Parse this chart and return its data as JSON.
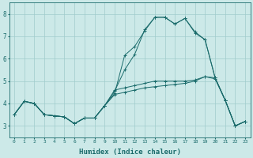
{
  "xlabel": "Humidex (Indice chaleur)",
  "bg_color": "#cce9e8",
  "grid_color": "#a0cccc",
  "line_color": "#1a6b6b",
  "xlim": [
    -0.5,
    23.5
  ],
  "ylim": [
    2.5,
    8.5
  ],
  "xticks": [
    0,
    1,
    2,
    3,
    4,
    5,
    6,
    7,
    8,
    9,
    10,
    11,
    12,
    13,
    14,
    15,
    16,
    17,
    18,
    19,
    20,
    21,
    22,
    23
  ],
  "yticks": [
    3,
    4,
    5,
    6,
    7,
    8
  ],
  "line1_x": [
    0,
    1,
    2,
    3,
    4,
    5,
    6,
    7,
    8,
    9,
    10,
    11,
    12,
    13,
    14,
    15,
    16,
    17,
    18,
    19,
    20,
    21,
    22,
    23
  ],
  "line1_y": [
    3.5,
    4.1,
    4.0,
    3.5,
    3.45,
    3.4,
    3.1,
    3.35,
    3.35,
    3.9,
    4.6,
    4.7,
    4.8,
    4.9,
    5.0,
    5.0,
    5.0,
    5.0,
    5.05,
    5.2,
    5.1,
    4.15,
    3.0,
    3.2
  ],
  "line2_x": [
    0,
    1,
    2,
    3,
    4,
    5,
    6,
    7,
    8,
    9,
    10,
    11,
    12,
    13,
    14,
    15,
    16,
    17,
    18,
    19,
    20,
    21,
    22,
    23
  ],
  "line2_y": [
    3.5,
    4.1,
    4.0,
    3.5,
    3.45,
    3.4,
    3.1,
    3.35,
    3.35,
    3.9,
    4.55,
    5.5,
    6.2,
    7.3,
    7.85,
    7.85,
    7.55,
    7.8,
    7.2,
    6.85,
    5.15,
    4.15,
    3.0,
    3.2
  ],
  "line3_x": [
    0,
    1,
    2,
    3,
    4,
    5,
    6,
    7,
    8,
    9,
    10,
    11,
    12,
    13,
    14,
    15,
    16,
    17,
    18,
    19,
    20,
    21,
    22,
    23
  ],
  "line3_y": [
    3.5,
    4.1,
    4.0,
    3.5,
    3.45,
    3.4,
    3.1,
    3.35,
    3.35,
    3.9,
    4.45,
    6.15,
    6.55,
    7.25,
    7.85,
    7.85,
    7.55,
    7.8,
    7.15,
    6.85,
    5.15,
    4.15,
    3.0,
    3.2
  ],
  "line4_x": [
    0,
    1,
    2,
    3,
    4,
    5,
    6,
    7,
    8,
    9,
    10,
    11,
    12,
    13,
    14,
    15,
    16,
    17,
    18,
    19,
    20,
    21,
    22,
    23
  ],
  "line4_y": [
    3.5,
    4.1,
    4.0,
    3.5,
    3.45,
    3.4,
    3.1,
    3.35,
    3.35,
    3.9,
    4.4,
    4.5,
    4.6,
    4.7,
    4.75,
    4.8,
    4.85,
    4.9,
    5.0,
    5.2,
    5.15,
    4.15,
    3.0,
    3.2
  ]
}
